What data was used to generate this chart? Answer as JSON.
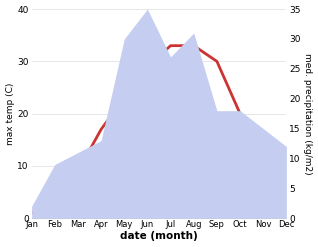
{
  "months": [
    "Jan",
    "Feb",
    "Mar",
    "Apr",
    "May",
    "Jun",
    "Jul",
    "Aug",
    "Sep",
    "Oct",
    "Nov",
    "Dec"
  ],
  "temp": [
    1,
    3,
    9,
    17,
    23,
    29,
    33,
    33,
    30,
    20,
    12,
    8
  ],
  "precip": [
    2,
    9,
    11,
    13,
    30,
    35,
    27,
    31,
    18,
    18,
    15,
    12
  ],
  "temp_color": "#cc3333",
  "precip_color_fill": "#c5cef0",
  "ylabel_left": "max temp (C)",
  "ylabel_right": "med. precipitation (kg/m2)",
  "xlabel": "date (month)",
  "ylim_left": [
    0,
    40
  ],
  "ylim_right": [
    0,
    35
  ],
  "bg_color": "#ffffff",
  "line_width": 2.0,
  "temp_yticks": [
    0,
    10,
    20,
    30,
    40
  ],
  "precip_yticks": [
    0,
    5,
    10,
    15,
    20,
    25,
    30,
    35
  ]
}
